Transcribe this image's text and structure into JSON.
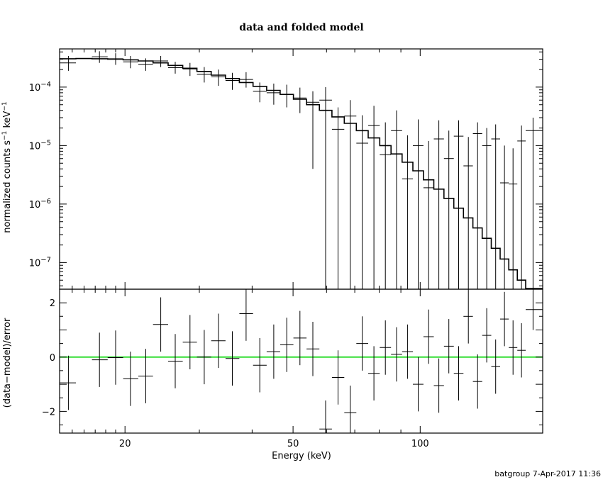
{
  "chart_data": [
    {
      "type": "line",
      "title": "data and folded model",
      "ylabel": "normalized counts s⁻¹ keV⁻¹",
      "ylabel_parts": {
        "main": "normalized counts s",
        "exp1": "−1",
        "mid": " keV",
        "exp2": "−1"
      },
      "xscale": "log",
      "yscale": "log",
      "xlim": [
        14,
        195
      ],
      "ylim": [
        3.5e-08,
        0.00045
      ],
      "yticks": [
        {
          "value": 0.0001,
          "base": "10",
          "exp": "−4"
        },
        {
          "value": 1e-05,
          "base": "10",
          "exp": "−5"
        },
        {
          "value": 1e-06,
          "base": "10",
          "exp": "−6"
        },
        {
          "value": 1e-07,
          "base": "10",
          "exp": "−7"
        }
      ],
      "series": [
        {
          "style": "steps",
          "bins": [
            {
              "x0": 14.0,
              "x1": 15.3,
              "y": 0.000305
            },
            {
              "x0": 15.3,
              "x1": 16.7,
              "y": 0.000308
            },
            {
              "x0": 16.7,
              "x1": 18.2,
              "y": 0.000305
            },
            {
              "x0": 18.2,
              "x1": 19.8,
              "y": 0.0003
            },
            {
              "x0": 19.8,
              "x1": 21.5,
              "y": 0.000293
            },
            {
              "x0": 21.5,
              "x1": 23.3,
              "y": 0.00028
            },
            {
              "x0": 23.3,
              "x1": 25.3,
              "y": 0.00026
            },
            {
              "x0": 25.3,
              "x1": 27.4,
              "y": 0.000235
            },
            {
              "x0": 27.4,
              "x1": 29.6,
              "y": 0.00021
            },
            {
              "x0": 29.6,
              "x1": 32.0,
              "y": 0.000185
            },
            {
              "x0": 32.0,
              "x1": 34.6,
              "y": 0.00016
            },
            {
              "x0": 34.6,
              "x1": 37.3,
              "y": 0.00014
            },
            {
              "x0": 37.3,
              "x1": 40.2,
              "y": 0.00012
            },
            {
              "x0": 40.2,
              "x1": 43.3,
              "y": 0.000103
            },
            {
              "x0": 43.3,
              "x1": 46.6,
              "y": 8.8e-05
            },
            {
              "x0": 46.6,
              "x1": 50.1,
              "y": 7.5e-05
            },
            {
              "x0": 50.1,
              "x1": 53.8,
              "y": 6.2e-05
            },
            {
              "x0": 53.8,
              "x1": 57.7,
              "y": 5e-05
            },
            {
              "x0": 57.7,
              "x1": 61.8,
              "y": 4e-05
            },
            {
              "x0": 61.8,
              "x1": 66.1,
              "y": 3.1e-05
            },
            {
              "x0": 66.1,
              "x1": 70.6,
              "y": 2.4e-05
            },
            {
              "x0": 70.6,
              "x1": 75.3,
              "y": 1.8e-05
            },
            {
              "x0": 75.3,
              "x1": 80.2,
              "y": 1.35e-05
            },
            {
              "x0": 80.2,
              "x1": 85.3,
              "y": 1e-05
            },
            {
              "x0": 85.3,
              "x1": 90.6,
              "y": 7.2e-06
            },
            {
              "x0": 90.6,
              "x1": 96.1,
              "y": 5.2e-06
            },
            {
              "x0": 96.1,
              "x1": 101.8,
              "y": 3.7e-06
            },
            {
              "x0": 101.8,
              "x1": 107.7,
              "y": 2.6e-06
            },
            {
              "x0": 107.7,
              "x1": 113.8,
              "y": 1.8e-06
            },
            {
              "x0": 113.8,
              "x1": 120.1,
              "y": 1.25e-06
            },
            {
              "x0": 120.1,
              "x1": 126.6,
              "y": 8.5e-07
            },
            {
              "x0": 126.6,
              "x1": 133.3,
              "y": 5.8e-07
            },
            {
              "x0": 133.3,
              "x1": 140.2,
              "y": 3.9e-07
            },
            {
              "x0": 140.2,
              "x1": 147.3,
              "y": 2.6e-07
            },
            {
              "x0": 147.3,
              "x1": 154.6,
              "y": 1.75e-07
            },
            {
              "x0": 154.6,
              "x1": 162.1,
              "y": 1.15e-07
            },
            {
              "x0": 162.1,
              "x1": 169.8,
              "y": 7.5e-08
            },
            {
              "x0": 169.8,
              "x1": 177.7,
              "y": 5e-08
            },
            {
              "x0": 177.7,
              "x1": 195.0,
              "y": 3.6e-08
            }
          ]
        },
        {
          "style": "crosses",
          "points": [
            {
              "x": 14.7,
              "xlo": 14.0,
              "xhi": 15.3,
              "y": 0.00026,
              "ylo": 0.00019,
              "yhi": 0.00034
            },
            {
              "x": 17.4,
              "xlo": 16.7,
              "xhi": 18.2,
              "y": 0.00033,
              "ylo": 0.00026,
              "yhi": 0.00041
            },
            {
              "x": 19.0,
              "xlo": 18.2,
              "xhi": 19.8,
              "y": 0.000305,
              "ylo": 0.00024,
              "yhi": 0.00038
            },
            {
              "x": 20.6,
              "xlo": 19.8,
              "xhi": 21.5,
              "y": 0.00027,
              "ylo": 0.00021,
              "yhi": 0.00034
            },
            {
              "x": 22.4,
              "xlo": 21.5,
              "xhi": 23.3,
              "y": 0.000245,
              "ylo": 0.00019,
              "yhi": 0.00031
            },
            {
              "x": 24.3,
              "xlo": 23.3,
              "xhi": 25.3,
              "y": 0.00028,
              "ylo": 0.00022,
              "yhi": 0.00034
            },
            {
              "x": 26.3,
              "xlo": 25.3,
              "xhi": 27.4,
              "y": 0.000215,
              "ylo": 0.00017,
              "yhi": 0.00027
            },
            {
              "x": 28.5,
              "xlo": 27.4,
              "xhi": 29.6,
              "y": 0.000205,
              "ylo": 0.000155,
              "yhi": 0.00026
            },
            {
              "x": 30.8,
              "xlo": 29.6,
              "xhi": 32.0,
              "y": 0.000165,
              "ylo": 0.00012,
              "yhi": 0.00022
            },
            {
              "x": 33.3,
              "xlo": 32.0,
              "xhi": 34.6,
              "y": 0.00015,
              "ylo": 0.000105,
              "yhi": 0.0002
            },
            {
              "x": 35.9,
              "xlo": 34.6,
              "xhi": 37.3,
              "y": 0.00013,
              "ylo": 9e-05,
              "yhi": 0.000175
            },
            {
              "x": 38.7,
              "xlo": 37.3,
              "xhi": 40.2,
              "y": 0.000135,
              "ylo": 9.8e-05,
              "yhi": 0.00018
            },
            {
              "x": 41.7,
              "xlo": 40.2,
              "xhi": 43.3,
              "y": 8.5e-05,
              "ylo": 5.5e-05,
              "yhi": 0.00012
            },
            {
              "x": 45.0,
              "xlo": 43.3,
              "xhi": 46.6,
              "y": 8e-05,
              "ylo": 5e-05,
              "yhi": 0.000115
            },
            {
              "x": 48.3,
              "xlo": 46.6,
              "xhi": 50.1,
              "y": 7.5e-05,
              "ylo": 4.5e-05,
              "yhi": 0.00011
            },
            {
              "x": 51.9,
              "xlo": 50.1,
              "xhi": 53.8,
              "y": 6.5e-05,
              "ylo": 3.6e-05,
              "yhi": 9.8e-05
            },
            {
              "x": 55.7,
              "xlo": 53.8,
              "xhi": 57.7,
              "y": 5.5e-05,
              "ylo": 4e-06,
              "yhi": 8.5e-05
            },
            {
              "x": 59.7,
              "xlo": 57.7,
              "xhi": 61.8,
              "y": 6e-05,
              "ylo": 3.5e-08,
              "yhi": 0.0001
            },
            {
              "x": 63.9,
              "xlo": 61.8,
              "xhi": 66.1,
              "y": 1.9e-05,
              "ylo": 3.5e-08,
              "yhi": 4.5e-05
            },
            {
              "x": 68.3,
              "xlo": 66.1,
              "xhi": 70.6,
              "y": 3.2e-05,
              "ylo": 3.5e-08,
              "yhi": 6e-05
            },
            {
              "x": 72.9,
              "xlo": 70.6,
              "xhi": 75.3,
              "y": 1.1e-05,
              "ylo": 3.5e-08,
              "yhi": 3.3e-05
            },
            {
              "x": 77.7,
              "xlo": 75.3,
              "xhi": 80.2,
              "y": 2.2e-05,
              "ylo": 3.5e-08,
              "yhi": 4.8e-05
            },
            {
              "x": 82.7,
              "xlo": 80.2,
              "xhi": 85.3,
              "y": 7e-06,
              "ylo": 3.5e-08,
              "yhi": 2.5e-05
            },
            {
              "x": 87.9,
              "xlo": 85.3,
              "xhi": 90.6,
              "y": 1.8e-05,
              "ylo": 3.5e-08,
              "yhi": 4e-05
            },
            {
              "x": 93.3,
              "xlo": 90.6,
              "xhi": 96.1,
              "y": 2.7e-06,
              "ylo": 3.5e-08,
              "yhi": 1.5e-05
            },
            {
              "x": 98.9,
              "xlo": 96.1,
              "xhi": 101.8,
              "y": 1e-05,
              "ylo": 3.5e-08,
              "yhi": 2.8e-05
            },
            {
              "x": 104.7,
              "xlo": 101.8,
              "xhi": 107.7,
              "y": 1.9e-06,
              "ylo": 3.5e-08,
              "yhi": 1.2e-05
            },
            {
              "x": 110.7,
              "xlo": 107.7,
              "xhi": 113.8,
              "y": 1.3e-05,
              "ylo": 3.5e-08,
              "yhi": 2.7e-05
            },
            {
              "x": 116.9,
              "xlo": 113.8,
              "xhi": 120.1,
              "y": 6e-06,
              "ylo": 3.5e-08,
              "yhi": 1.8e-05
            },
            {
              "x": 123.3,
              "xlo": 120.1,
              "xhi": 126.6,
              "y": 1.45e-05,
              "ylo": 3.5e-08,
              "yhi": 2.7e-05
            },
            {
              "x": 130.0,
              "xlo": 126.6,
              "xhi": 133.3,
              "y": 4.5e-06,
              "ylo": 3.5e-08,
              "yhi": 1.4e-05
            },
            {
              "x": 136.7,
              "xlo": 133.3,
              "xhi": 140.2,
              "y": 1.6e-05,
              "ylo": 3.5e-08,
              "yhi": 2.5e-05
            },
            {
              "x": 143.7,
              "xlo": 140.2,
              "xhi": 147.3,
              "y": 1e-05,
              "ylo": 3.5e-08,
              "yhi": 2e-05
            },
            {
              "x": 150.9,
              "xlo": 147.3,
              "xhi": 154.6,
              "y": 1.3e-05,
              "ylo": 3.5e-08,
              "yhi": 2.3e-05
            },
            {
              "x": 158.3,
              "xlo": 154.6,
              "xhi": 162.1,
              "y": 2.3e-06,
              "ylo": 3.5e-08,
              "yhi": 1e-05
            },
            {
              "x": 165.9,
              "xlo": 162.1,
              "xhi": 169.8,
              "y": 2.2e-06,
              "ylo": 3.5e-08,
              "yhi": 9e-06
            },
            {
              "x": 173.7,
              "xlo": 169.8,
              "xhi": 177.7,
              "y": 1.2e-05,
              "ylo": 3.5e-08,
              "yhi": 2.2e-05
            },
            {
              "x": 185.0,
              "xlo": 177.7,
              "xhi": 195.0,
              "y": 1.8e-05,
              "ylo": 3.5e-08,
              "yhi": 3e-05
            }
          ]
        }
      ]
    },
    {
      "type": "scatter",
      "xlabel": "Energy (keV)",
      "ylabel": "(data−model)/error",
      "xscale": "log",
      "xlim": [
        14,
        195
      ],
      "ylim": [
        -2.8,
        2.5
      ],
      "xticks": [
        {
          "value": 20,
          "label": "20"
        },
        {
          "value": 50,
          "label": "50"
        },
        {
          "value": 100,
          "label": "100"
        }
      ],
      "yticks": [
        {
          "value": 2,
          "label": "2"
        },
        {
          "value": 0,
          "label": "0"
        },
        {
          "value": -2,
          "label": "−2"
        }
      ],
      "reference_line": {
        "y": 0,
        "color": "#33dd33"
      },
      "points": [
        {
          "x": 14.7,
          "xlo": 14.0,
          "xhi": 15.3,
          "y": -0.95,
          "ylo": -1.95,
          "yhi": 0.05
        },
        {
          "x": 17.4,
          "xlo": 16.7,
          "xhi": 18.2,
          "y": -0.1,
          "ylo": -1.1,
          "yhi": 0.9
        },
        {
          "x": 19.0,
          "xlo": 18.2,
          "xhi": 19.8,
          "y": -0.02,
          "ylo": -1.02,
          "yhi": 0.98
        },
        {
          "x": 20.6,
          "xlo": 19.8,
          "xhi": 21.5,
          "y": -0.8,
          "ylo": -1.8,
          "yhi": 0.2
        },
        {
          "x": 22.4,
          "xlo": 21.5,
          "xhi": 23.3,
          "y": -0.7,
          "ylo": -1.7,
          "yhi": 0.3
        },
        {
          "x": 24.3,
          "xlo": 23.3,
          "xhi": 25.3,
          "y": 1.2,
          "ylo": 0.2,
          "yhi": 2.2
        },
        {
          "x": 26.3,
          "xlo": 25.3,
          "xhi": 27.4,
          "y": -0.15,
          "ylo": -1.15,
          "yhi": 0.85
        },
        {
          "x": 28.5,
          "xlo": 27.4,
          "xhi": 29.6,
          "y": 0.55,
          "ylo": -0.45,
          "yhi": 1.55
        },
        {
          "x": 30.8,
          "xlo": 29.6,
          "xhi": 32.0,
          "y": 0.0,
          "ylo": -1.0,
          "yhi": 1.0
        },
        {
          "x": 33.3,
          "xlo": 32.0,
          "xhi": 34.6,
          "y": 0.6,
          "ylo": -0.4,
          "yhi": 1.6
        },
        {
          "x": 35.9,
          "xlo": 34.6,
          "xhi": 37.3,
          "y": -0.05,
          "ylo": -1.05,
          "yhi": 0.95
        },
        {
          "x": 38.7,
          "xlo": 37.3,
          "xhi": 40.2,
          "y": 1.6,
          "ylo": 0.6,
          "yhi": 2.6
        },
        {
          "x": 41.7,
          "xlo": 40.2,
          "xhi": 43.3,
          "y": -0.3,
          "ylo": -1.3,
          "yhi": 0.7
        },
        {
          "x": 45.0,
          "xlo": 43.3,
          "xhi": 46.6,
          "y": 0.2,
          "ylo": -0.8,
          "yhi": 1.2
        },
        {
          "x": 48.3,
          "xlo": 46.6,
          "xhi": 50.1,
          "y": 0.45,
          "ylo": -0.55,
          "yhi": 1.45
        },
        {
          "x": 51.9,
          "xlo": 50.1,
          "xhi": 53.8,
          "y": 0.7,
          "ylo": -0.3,
          "yhi": 1.7
        },
        {
          "x": 55.7,
          "xlo": 53.8,
          "xhi": 57.7,
          "y": 0.3,
          "ylo": -0.7,
          "yhi": 1.3
        },
        {
          "x": 59.7,
          "xlo": 57.7,
          "xhi": 61.8,
          "y": -2.65,
          "ylo": -2.8,
          "yhi": -1.6
        },
        {
          "x": 63.9,
          "xlo": 61.8,
          "xhi": 66.1,
          "y": -0.75,
          "ylo": -1.75,
          "yhi": 0.25
        },
        {
          "x": 68.3,
          "xlo": 66.1,
          "xhi": 70.6,
          "y": -2.05,
          "ylo": -2.8,
          "yhi": -1.05
        },
        {
          "x": 72.9,
          "xlo": 70.6,
          "xhi": 75.3,
          "y": 0.5,
          "ylo": -0.5,
          "yhi": 1.5
        },
        {
          "x": 77.7,
          "xlo": 75.3,
          "xhi": 80.2,
          "y": -0.6,
          "ylo": -1.6,
          "yhi": 0.4
        },
        {
          "x": 82.7,
          "xlo": 80.2,
          "xhi": 85.3,
          "y": 0.35,
          "ylo": -0.65,
          "yhi": 1.35
        },
        {
          "x": 87.9,
          "xlo": 85.3,
          "xhi": 90.6,
          "y": 0.1,
          "ylo": -0.9,
          "yhi": 1.1
        },
        {
          "x": 93.3,
          "xlo": 90.6,
          "xhi": 96.1,
          "y": 0.2,
          "ylo": -0.8,
          "yhi": 1.2
        },
        {
          "x": 98.9,
          "xlo": 96.1,
          "xhi": 101.8,
          "y": -1.0,
          "ylo": -2.0,
          "yhi": 0.0
        },
        {
          "x": 104.7,
          "xlo": 101.8,
          "xhi": 107.7,
          "y": 0.75,
          "ylo": -0.25,
          "yhi": 1.75
        },
        {
          "x": 110.7,
          "xlo": 107.7,
          "xhi": 113.8,
          "y": -1.05,
          "ylo": -2.05,
          "yhi": -0.05
        },
        {
          "x": 116.9,
          "xlo": 113.8,
          "xhi": 120.1,
          "y": 0.4,
          "ylo": -0.6,
          "yhi": 1.4
        },
        {
          "x": 123.3,
          "xlo": 120.1,
          "xhi": 126.6,
          "y": -0.6,
          "ylo": -1.6,
          "yhi": 0.4
        },
        {
          "x": 130.0,
          "xlo": 126.6,
          "xhi": 133.3,
          "y": 1.5,
          "ylo": 0.5,
          "yhi": 2.5
        },
        {
          "x": 136.7,
          "xlo": 133.3,
          "xhi": 140.2,
          "y": -0.9,
          "ylo": -1.9,
          "yhi": 0.1
        },
        {
          "x": 143.7,
          "xlo": 140.2,
          "xhi": 147.3,
          "y": 0.8,
          "ylo": -0.2,
          "yhi": 1.8
        },
        {
          "x": 150.9,
          "xlo": 147.3,
          "xhi": 154.6,
          "y": -0.35,
          "ylo": -1.35,
          "yhi": 0.65
        },
        {
          "x": 158.3,
          "xlo": 154.6,
          "xhi": 162.1,
          "y": 1.4,
          "ylo": 0.4,
          "yhi": 2.4
        },
        {
          "x": 165.9,
          "xlo": 162.1,
          "xhi": 169.8,
          "y": 0.35,
          "ylo": -0.65,
          "yhi": 1.35
        },
        {
          "x": 173.7,
          "xlo": 169.8,
          "xhi": 177.7,
          "y": 0.25,
          "ylo": -0.75,
          "yhi": 1.25
        },
        {
          "x": 185.0,
          "xlo": 177.7,
          "xhi": 195.0,
          "y": 1.75,
          "ylo": 1.0,
          "yhi": 2.5
        }
      ]
    }
  ],
  "footer": "batgroup  7-Apr-2017 11:36"
}
